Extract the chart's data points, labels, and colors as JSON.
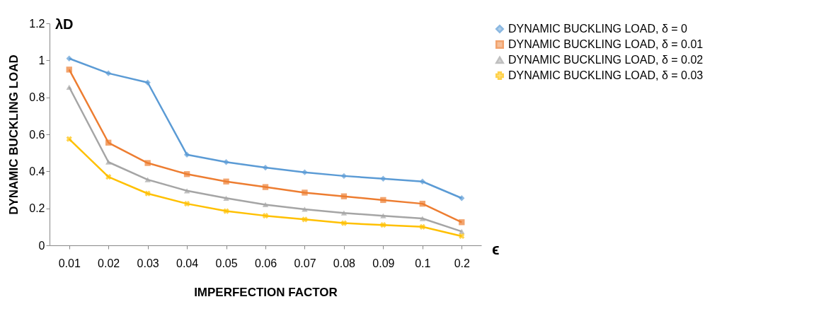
{
  "chart_data": {
    "type": "line",
    "xlabel": "IMPERFECTION FACTOR",
    "ylabel": "DYNAMIC BUCKLING LOAD",
    "annotations": [
      "λD",
      "ϵ"
    ],
    "categories": [
      "0.01",
      "0.02",
      "0.03",
      "0.04",
      "0.05",
      "0.06",
      "0.07",
      "0.08",
      "0.09",
      "0.1",
      "0.2"
    ],
    "ylim": [
      0,
      1.2
    ],
    "yticks": [
      0,
      0.2,
      0.4,
      0.6,
      0.8,
      1,
      1.2
    ],
    "grid": false,
    "legend": "top right",
    "line_style": "solid",
    "series": [
      {
        "name": "DYNAMIC BUCKLING LOAD, δ = 0",
        "color": "#5b9bd5",
        "marker": "diamond",
        "values": [
          1.01,
          0.93,
          0.88,
          0.49,
          0.45,
          0.42,
          0.395,
          0.375,
          0.36,
          0.345,
          0.255
        ]
      },
      {
        "name": "DYNAMIC BUCKLING LOAD, δ = 0.01",
        "color": "#ed7d31",
        "marker": "square",
        "values": [
          0.95,
          0.555,
          0.445,
          0.385,
          0.345,
          0.315,
          0.285,
          0.265,
          0.245,
          0.225,
          0.125
        ]
      },
      {
        "name": "DYNAMIC BUCKLING LOAD, δ = 0.02",
        "color": "#a5a5a5",
        "marker": "triangle",
        "values": [
          0.855,
          0.45,
          0.355,
          0.295,
          0.255,
          0.22,
          0.195,
          0.175,
          0.16,
          0.145,
          0.075
        ]
      },
      {
        "name": "DYNAMIC BUCKLING LOAD, δ = 0.03",
        "color": "#ffc000",
        "marker": "cross",
        "values": [
          0.575,
          0.37,
          0.28,
          0.225,
          0.185,
          0.16,
          0.14,
          0.12,
          0.11,
          0.1,
          0.05
        ]
      }
    ]
  }
}
